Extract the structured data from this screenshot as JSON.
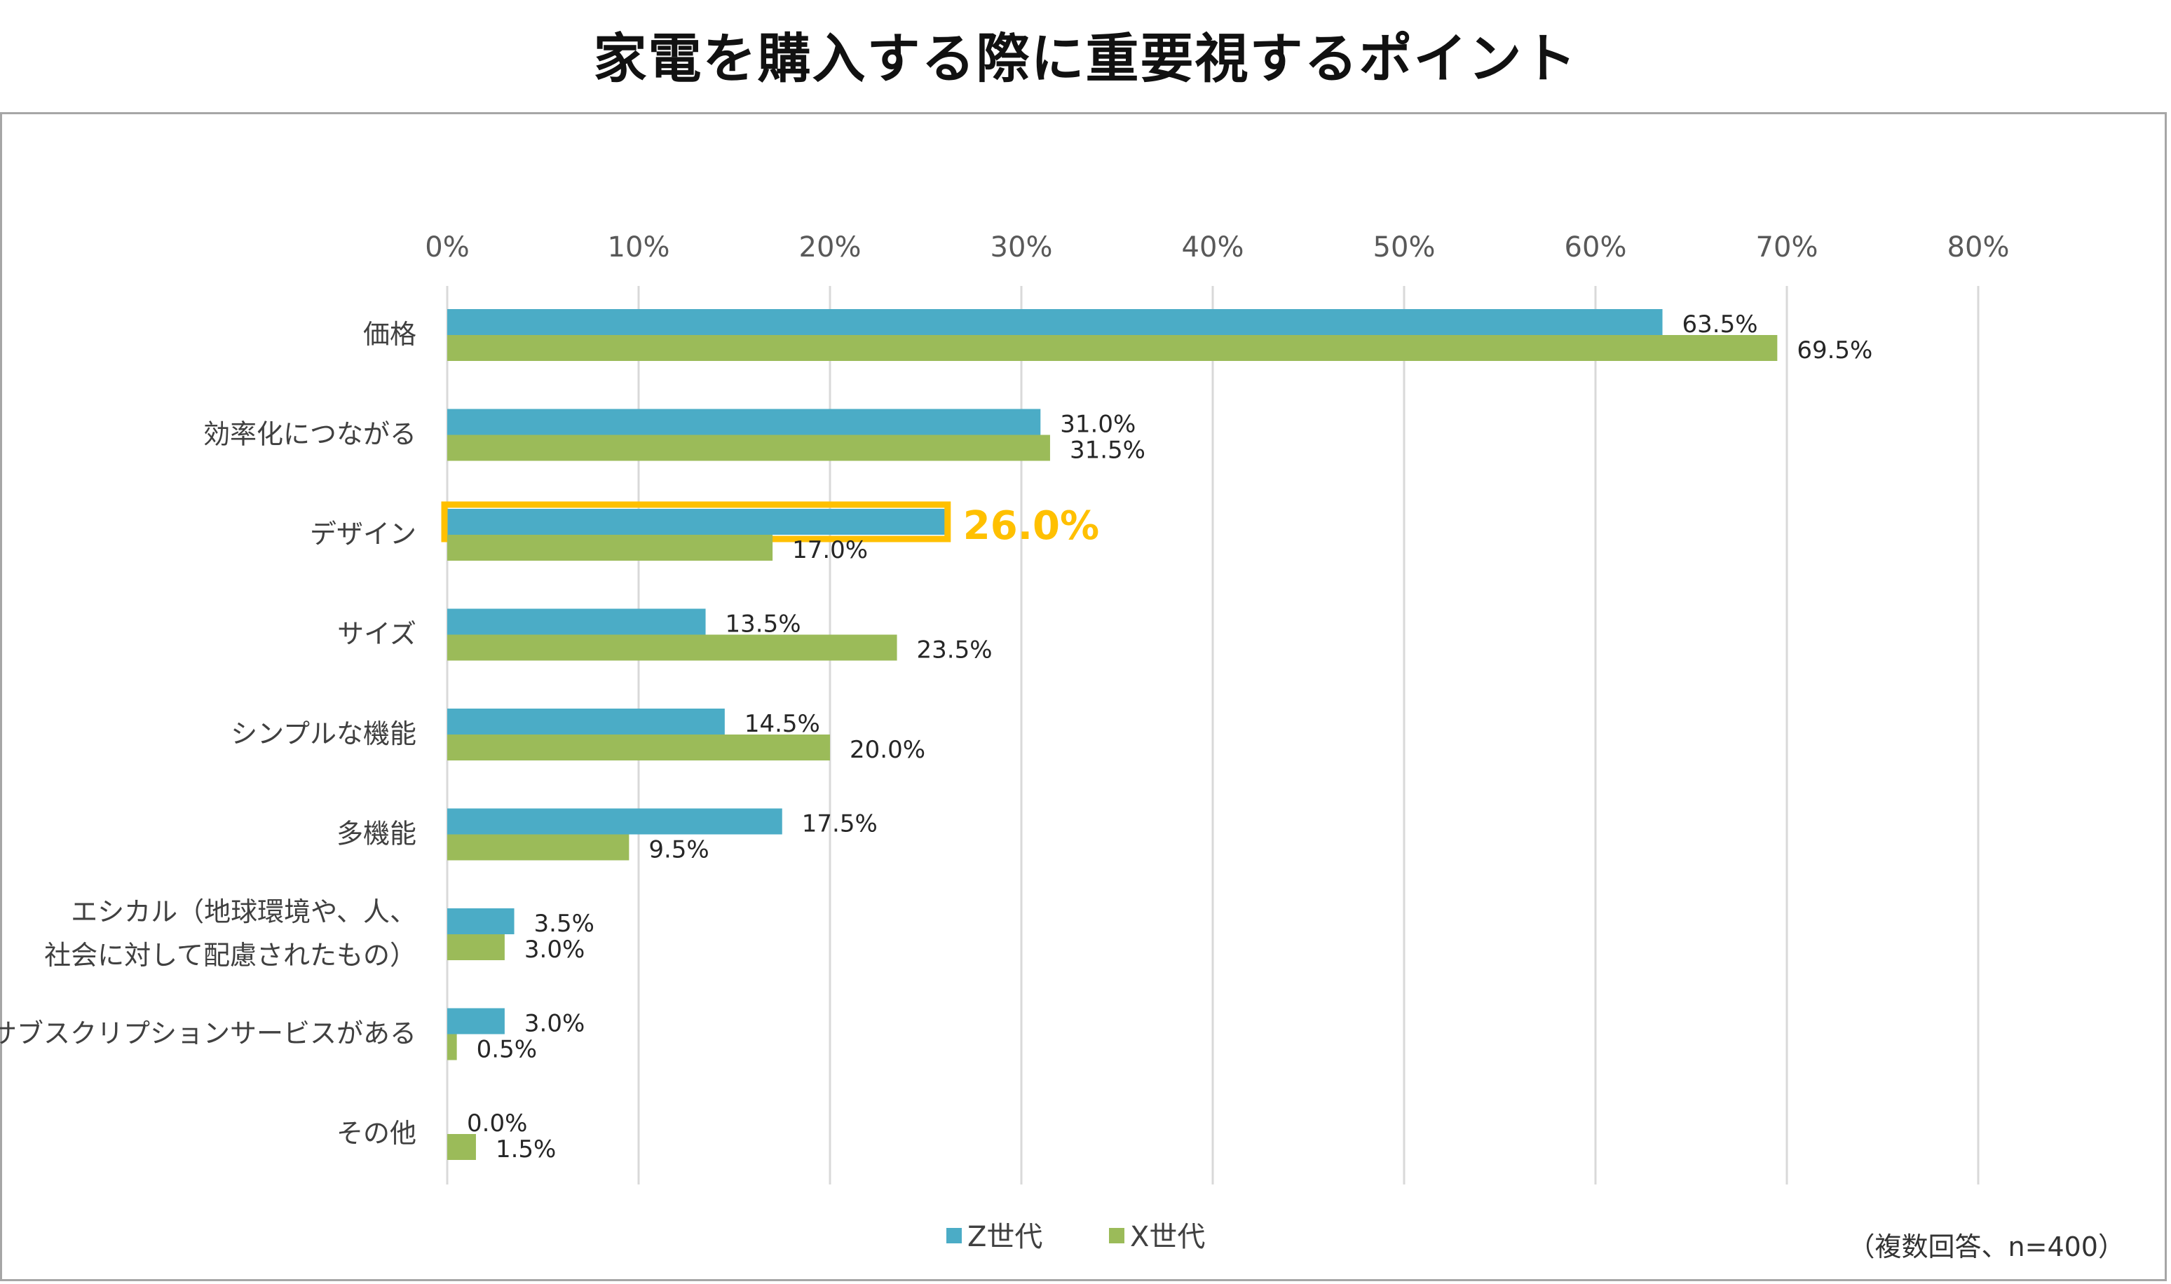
{
  "chart_data": {
    "type": "bar",
    "orientation": "horizontal",
    "title": "家電を購入する際に重要視するポイント",
    "categories": [
      "価格",
      "効率化につながる",
      "デザイン",
      "サイズ",
      "シンプルな機能",
      "多機能",
      "エシカル（地球環境や、人、社会に対して配慮されたもの）",
      "サブスクリプションサービスがある",
      "その他"
    ],
    "category_lines": [
      [
        "価格"
      ],
      [
        "効率化につながる"
      ],
      [
        "デザイン"
      ],
      [
        "サイズ"
      ],
      [
        "シンプルな機能"
      ],
      [
        "多機能"
      ],
      [
        "エシカル（地球環境や、人、",
        "社会に対して配慮されたもの）"
      ],
      [
        "サブスクリプションサービスがある"
      ],
      [
        "その他"
      ]
    ],
    "series": [
      {
        "name": "Z世代",
        "color": "#4bacc6",
        "values": [
          63.5,
          31.0,
          26.0,
          13.5,
          14.5,
          17.5,
          3.5,
          3.0,
          0.0
        ],
        "labels": [
          "63.5%",
          "31.0%",
          "26.0%",
          "13.5%",
          "14.5%",
          "17.5%",
          "3.5%",
          "3.0%",
          "0.0%"
        ]
      },
      {
        "name": "X世代",
        "color": "#9bbb59",
        "values": [
          69.5,
          31.5,
          17.0,
          23.5,
          20.0,
          9.5,
          3.0,
          0.5,
          1.5
        ],
        "labels": [
          "69.5%",
          "31.5%",
          "17.0%",
          "23.5%",
          "20.0%",
          "9.5%",
          "3.0%",
          "0.5%",
          "1.5%"
        ]
      }
    ],
    "xlim": [
      0,
      80
    ],
    "xticks": [
      0,
      10,
      20,
      30,
      40,
      50,
      60,
      70,
      80
    ],
    "xtick_labels": [
      "0%",
      "10%",
      "20%",
      "30%",
      "40%",
      "50%",
      "60%",
      "70%",
      "80%"
    ],
    "grid": true,
    "legend": "bottom",
    "highlight": {
      "series": 0,
      "category": 2,
      "label": "26.0%",
      "color": "#ffc000"
    },
    "note": "（複数回答、n=400）"
  }
}
